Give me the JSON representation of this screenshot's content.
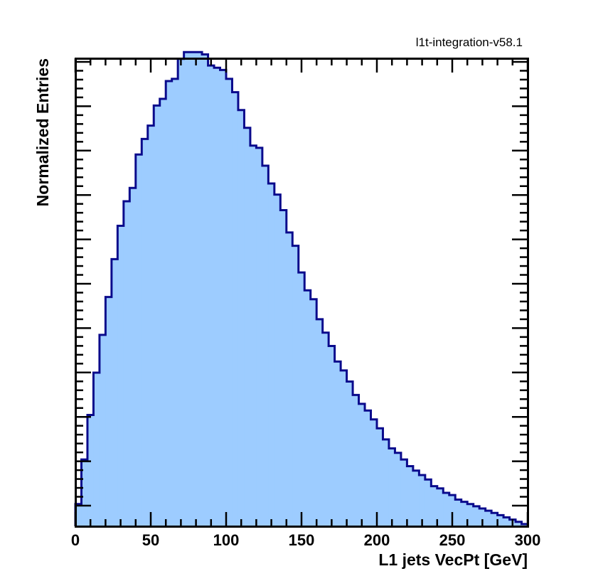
{
  "header": {
    "tag": "l1t-integration-v58.1"
  },
  "colors": {
    "fill": "#9dccff",
    "line": "#0a0a8c",
    "frame": "#000000"
  },
  "chart_data": {
    "type": "histogram",
    "title": "",
    "xlabel": "L1 jets VecPt [GeV]",
    "ylabel": "Normalized Entries",
    "xlim": [
      0,
      300
    ],
    "x_tick_labels": [
      "0",
      "50",
      "100",
      "150",
      "200",
      "250",
      "300"
    ],
    "y_tick_labels_shown": false,
    "grid": false,
    "legend": "none",
    "bin_width": 4,
    "bin_start": 0,
    "values_relative_to_peak": [
      0.05,
      0.15,
      0.25,
      0.345,
      0.43,
      0.515,
      0.6,
      0.675,
      0.73,
      0.76,
      0.835,
      0.87,
      0.9,
      0.945,
      0.96,
      1.0,
      1.005,
      1.05,
      1.065,
      1.065,
      1.065,
      1.06,
      1.035,
      1.03,
      1.025,
      1.005,
      0.975,
      0.935,
      0.895,
      0.855,
      0.85,
      0.81,
      0.77,
      0.745,
      0.71,
      0.66,
      0.63,
      0.57,
      0.53,
      0.51,
      0.465,
      0.435,
      0.405,
      0.37,
      0.35,
      0.325,
      0.295,
      0.275,
      0.26,
      0.24,
      0.22,
      0.195,
      0.175,
      0.165,
      0.15,
      0.135,
      0.125,
      0.115,
      0.105,
      0.09,
      0.085,
      0.075,
      0.07,
      0.06,
      0.055,
      0.05,
      0.045,
      0.04,
      0.035,
      0.03,
      0.025,
      0.02,
      0.015,
      0.01,
      0.005
    ]
  }
}
